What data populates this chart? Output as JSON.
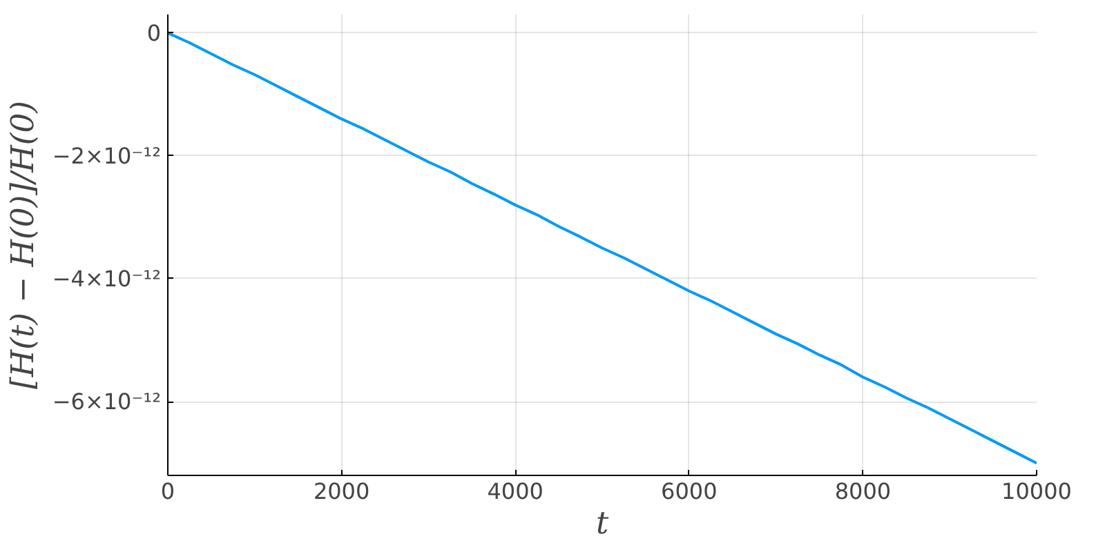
{
  "chart_data": {
    "type": "line",
    "xlabel": "t",
    "ylabel": "[H(t) − H(0)]/H(0)",
    "x": [
      0,
      250,
      500,
      750,
      1000,
      1250,
      1500,
      1750,
      2000,
      2250,
      2500,
      2750,
      3000,
      3250,
      3500,
      3750,
      4000,
      4250,
      4500,
      4750,
      5000,
      5250,
      5500,
      5750,
      6000,
      6250,
      6500,
      6750,
      7000,
      7250,
      7500,
      7750,
      8000,
      8250,
      8500,
      8750,
      9000,
      9250,
      9500,
      9750,
      10000
    ],
    "series": [
      {
        "color": "#009af9",
        "values": [
          0,
          -1.6e-13,
          -3.4e-13,
          -5.2e-13,
          -6.8e-13,
          -8.6e-13,
          -1.04e-12,
          -1.22e-12,
          -1.4e-12,
          -1.56e-12,
          -1.74e-12,
          -1.92e-12,
          -2.1e-12,
          -2.26e-12,
          -2.45e-12,
          -2.62e-12,
          -2.8e-12,
          -2.96e-12,
          -3.15e-12,
          -3.32e-12,
          -3.5e-12,
          -3.66e-12,
          -3.84e-12,
          -4.02e-12,
          -4.2e-12,
          -4.36e-12,
          -4.54e-12,
          -4.72e-12,
          -4.9e-12,
          -5.06e-12,
          -5.24e-12,
          -5.4e-12,
          -5.6e-12,
          -5.76e-12,
          -5.94e-12,
          -6.1e-12,
          -6.28e-12,
          -6.46e-12,
          -6.64e-12,
          -6.82e-12,
          -7e-12
        ]
      }
    ],
    "xlim": [
      0,
      10000
    ],
    "xticks": [
      0,
      2000,
      4000,
      6000,
      8000,
      10000
    ],
    "ylim": [
      -7.2e-12,
      3e-13
    ],
    "yticks": [
      {
        "value": 0,
        "label": "0"
      },
      {
        "value": -2e-12,
        "label": "−2×10⁻¹²"
      },
      {
        "value": -4e-12,
        "label": "−4×10⁻¹²"
      },
      {
        "value": -6e-12,
        "label": "−6×10⁻¹²"
      }
    ],
    "grid": true,
    "line_style": "solid"
  }
}
